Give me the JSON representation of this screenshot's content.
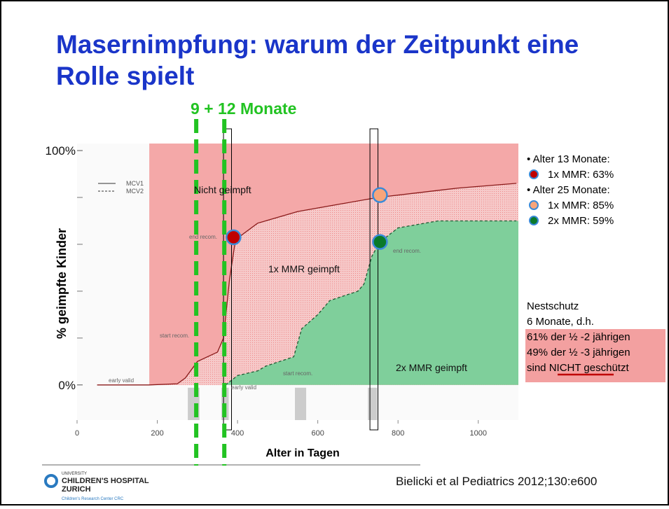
{
  "title_lines": [
    "Masernimpfung: warum der Zeitpunkt eine",
    "Rolle spielt"
  ],
  "chart_data": {
    "type": "line",
    "subtitle": "9 + 12 Monate",
    "xlabel": "Alter in Tagen",
    "ylabel": "% geimpfte Kinder",
    "xlim": [
      0,
      1100
    ],
    "ylim": [
      -15,
      103
    ],
    "xticks": [
      0,
      200,
      400,
      600,
      800,
      1000
    ],
    "yticks": [
      {
        "value": 0,
        "label": "0%"
      },
      {
        "value": 100,
        "label": "100%"
      }
    ],
    "yminor": [
      20,
      40,
      60,
      80
    ],
    "vlines": [
      297,
      367
    ],
    "series": [
      {
        "name": "MCV1",
        "color": "#8a1a1a",
        "dash": false,
        "x": [
          50,
          180,
          250,
          270,
          300,
          350,
          365,
          380,
          395,
          450,
          550,
          650,
          750,
          850,
          950,
          1095
        ],
        "values": [
          0,
          0,
          0.5,
          3,
          10,
          14,
          20,
          45,
          62,
          69,
          74,
          77,
          80,
          82,
          84,
          86
        ]
      },
      {
        "name": "MCV2",
        "color": "#1f5a33",
        "dash": true,
        "x": [
          370,
          400,
          450,
          470,
          540,
          560,
          600,
          630,
          700,
          715,
          735,
          755,
          800,
          900,
          1095
        ],
        "values": [
          0,
          4,
          6,
          8,
          12,
          24,
          30,
          36,
          40,
          43,
          55,
          61,
          67,
          70,
          70
        ]
      }
    ],
    "markers": [
      {
        "x": 390,
        "y": 63,
        "color": "#c00000"
      },
      {
        "x": 755,
        "y": 81,
        "color": "#f7a57b"
      },
      {
        "x": 755,
        "y": 61,
        "color": "#0a7a2a"
      }
    ],
    "annotations": [
      "Nicht geimpft",
      "1x MMR geimpft",
      "2x MMR geimpft",
      "early valid",
      "start recom.",
      "end recom.",
      "early valid",
      "start recom.",
      "end recom."
    ]
  },
  "sidebar": {
    "items": [
      "• Alter 13 Monate:",
      "1x MMR: 63%",
      "• Alter 25 Monate:",
      "1x MMR: 85%",
      "2x MMR: 59%"
    ],
    "nest": [
      "Nestschutz",
      "6 Monate, d.h."
    ],
    "highlight": [
      "61% der ½ -2 jährigen",
      "49% der ½ -3 jährigen"
    ],
    "last": [
      "sind ",
      "NICHT",
      " geschützt"
    ]
  },
  "footer": {
    "logo": [
      "UNIVERSITY",
      "CHILDREN'S HOSPITAL",
      "ZURICH",
      "Children's Research Center CRC"
    ],
    "citation": "Bielicki et al Pediatrics 2012;130:e600"
  }
}
